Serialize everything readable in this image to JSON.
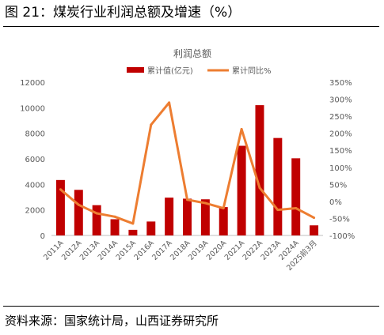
{
  "figure": {
    "title": "图 21：煤炭行业利润总额及增速（%）",
    "source": "资料来源：国家统计局，山西证券研究所"
  },
  "colors": {
    "bar": "#c00000",
    "line": "#ed7d31",
    "axis": "#bfbfbf",
    "text": "#595959"
  },
  "chart_data": {
    "type": "bar",
    "title": "利润总额",
    "categories": [
      "2011A",
      "2012A",
      "2013A",
      "2014A",
      "2015A",
      "2016A",
      "2017A",
      "2018A",
      "2019A",
      "2020A",
      "2021A",
      "2022A",
      "2023A",
      "2024A",
      "2025前3月"
    ],
    "series": [
      {
        "name": "累计值(亿元)",
        "type": "bar",
        "axis": "left",
        "values": [
          4340,
          3570,
          2370,
          1270,
          440,
          1090,
          2960,
          2880,
          2830,
          2220,
          7020,
          10200,
          7630,
          6040,
          790
        ]
      },
      {
        "name": "累计同比%",
        "type": "line",
        "axis": "right",
        "values": [
          35,
          -10,
          -35,
          -45,
          -65,
          225,
          290,
          5,
          -5,
          -20,
          212,
          40,
          -25,
          -20,
          -48
        ]
      }
    ],
    "y_left": {
      "min": 0,
      "max": 12000,
      "ticks": [
        "0",
        "2000",
        "4000",
        "6000",
        "8000",
        "10000",
        "12000"
      ]
    },
    "y_right": {
      "min": -100,
      "max": 350,
      "ticks": [
        "-100%",
        "-50%",
        "0%",
        "50%",
        "100%",
        "150%",
        "200%",
        "250%",
        "300%",
        "350%"
      ]
    },
    "legend_position": "top",
    "grid": false
  }
}
